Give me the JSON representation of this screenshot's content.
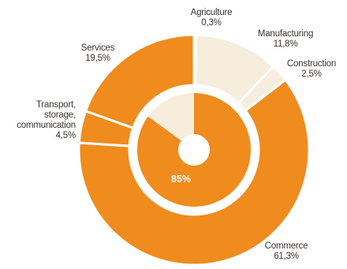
{
  "chart_data": {
    "type": "pie",
    "title": "",
    "outer_ring": [
      {
        "name": "Agriculture",
        "label": "0,3%",
        "value": 0.3
      },
      {
        "name": "Manufacturing",
        "label": "11,8%",
        "value": 11.8
      },
      {
        "name": "Construction",
        "label": "2,5%",
        "value": 2.5
      },
      {
        "name": "Commerce",
        "label": "61,3%",
        "value": 61.3
      },
      {
        "name": "Transport, storage, communication",
        "label": "4,5%",
        "value": 4.5
      },
      {
        "name": "Services",
        "label": "19,5%",
        "value": 19.5
      }
    ],
    "inner_ring": [
      {
        "label": "85%",
        "value": 85
      },
      {
        "label": "",
        "value": 15
      }
    ],
    "colors": {
      "primary": "#f08b1d",
      "secondary": "#f6eddc",
      "separator": "#ffffff"
    }
  }
}
